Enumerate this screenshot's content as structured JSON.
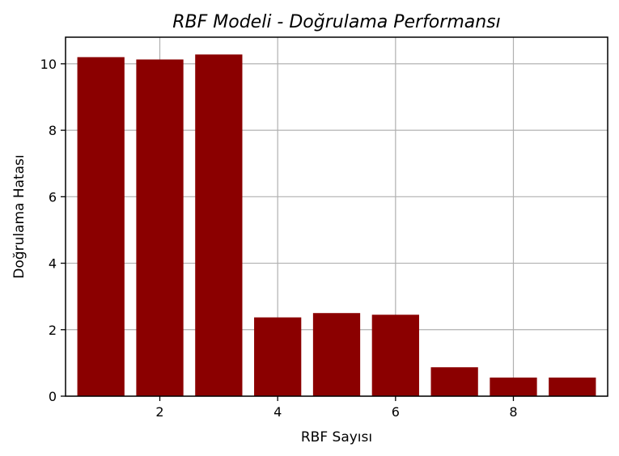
{
  "chart_data": {
    "type": "bar",
    "title": "RBF Modeli - Doğrulama Performansı",
    "xlabel": "RBF Sayısı",
    "ylabel": "Doğrulama Hatası",
    "x": [
      1,
      2,
      3,
      4,
      5,
      6,
      7,
      8,
      9
    ],
    "values": [
      10.2,
      10.13,
      10.28,
      2.37,
      2.5,
      2.45,
      0.87,
      0.56,
      0.56
    ],
    "xlim": [
      0.4,
      9.6
    ],
    "ylim": [
      0,
      10.8
    ],
    "xticks": [
      2,
      4,
      6,
      8
    ],
    "yticks": [
      0,
      2,
      4,
      6,
      8,
      10
    ],
    "bar_width": 0.8,
    "bar_color": "#8b0000",
    "grid": true
  }
}
